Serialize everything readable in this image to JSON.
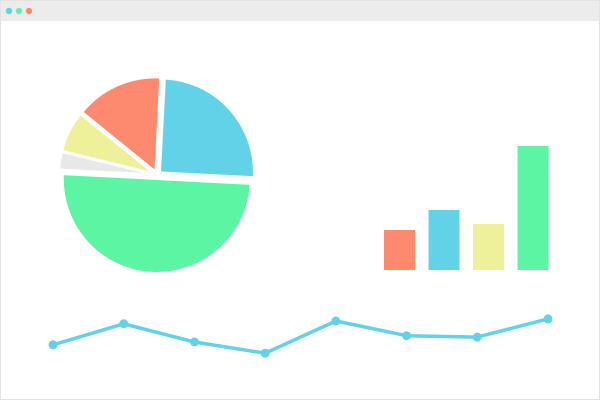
{
  "chart_data": [
    {
      "type": "pie",
      "values": [
        25,
        50,
        3,
        7,
        15
      ],
      "colors": [
        "#62d2e8",
        "#5bf5a3",
        "#e8e8e8",
        "#eef09a",
        "#fd8a6e"
      ]
    },
    {
      "type": "bar",
      "values": [
        40,
        60,
        46,
        124
      ],
      "colors": [
        "#fd8a6e",
        "#62d2e8",
        "#eef09a",
        "#5bf5a3"
      ],
      "ylim": [
        0,
        124
      ]
    },
    {
      "type": "line",
      "values": [
        36,
        66,
        40,
        24,
        70,
        49,
        47,
        73
      ],
      "color": "#62d2e8",
      "ylim": [
        0,
        100
      ]
    }
  ]
}
